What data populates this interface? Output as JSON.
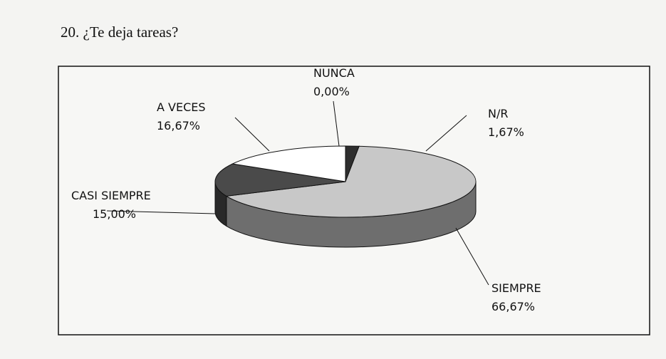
{
  "chart_data": {
    "type": "pie",
    "title": "20. ¿Te deja tareas?",
    "categories": [
      "NUNCA",
      "N/R",
      "SIEMPRE",
      "CASI SIEMPRE",
      "A VECES"
    ],
    "values": [
      0,
      1.67,
      66.67,
      15,
      16.67
    ],
    "value_labels": [
      "0,00%",
      "1,67%",
      "66,67%",
      "15,00%",
      "16,67%"
    ],
    "colors": [
      "#ffffff",
      "#2e2e2e",
      "#c8c8c8",
      "#4a4a4a",
      "#ffffff"
    ]
  }
}
